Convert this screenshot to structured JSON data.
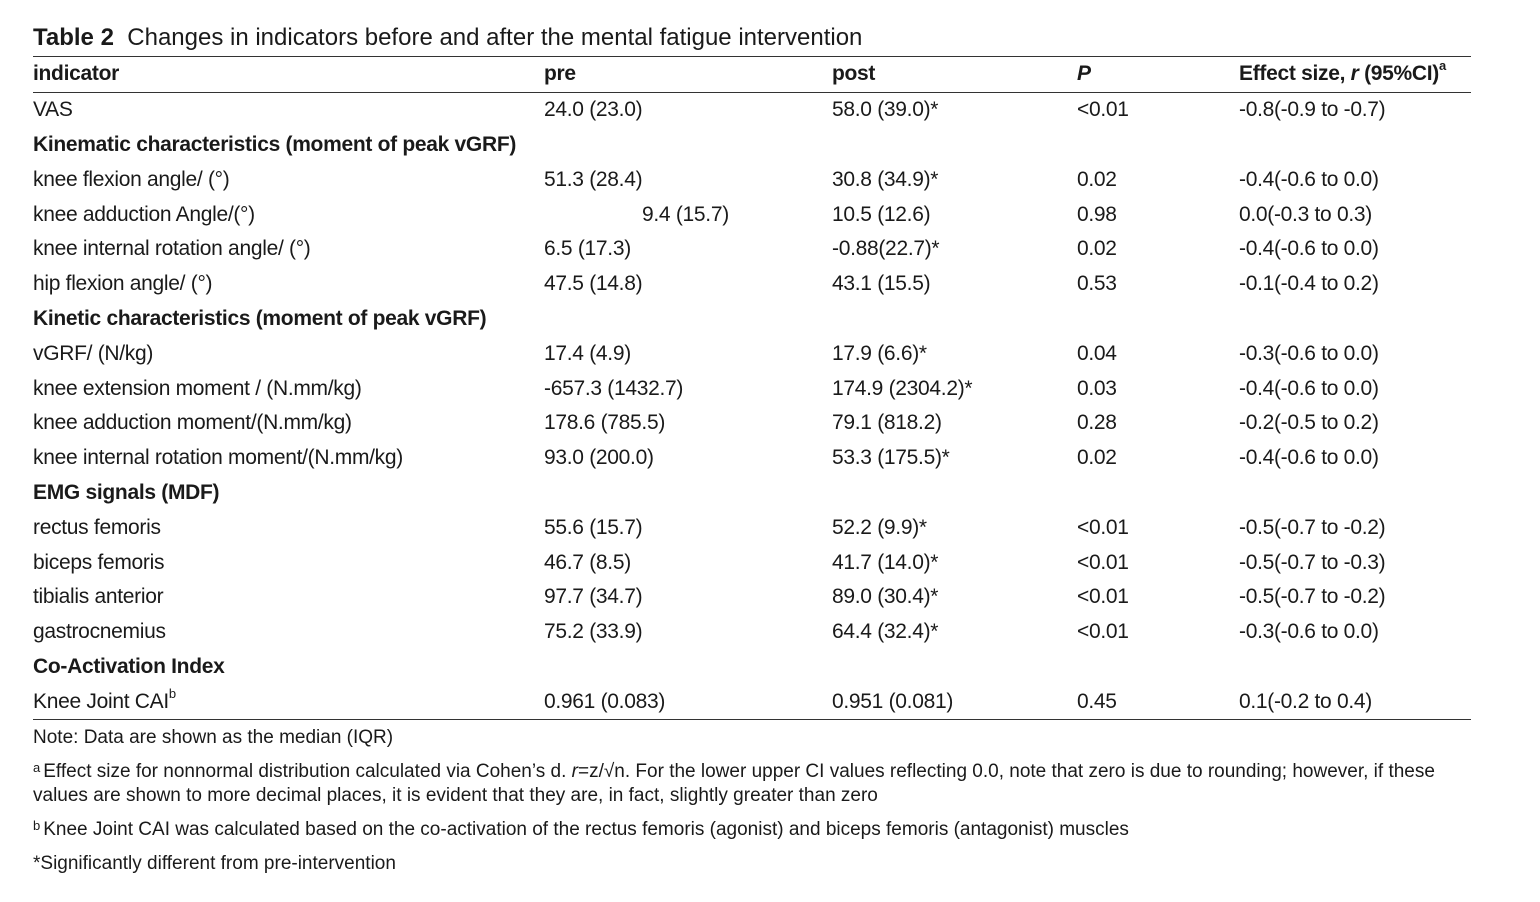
{
  "caption": {
    "label": "Table 2",
    "text": "Changes in indicators before and after the mental fatigue intervention"
  },
  "headers": {
    "indicator": "indicator",
    "pre": "pre",
    "post": "post",
    "p": "P",
    "effect_prefix": "Effect size, ",
    "effect_r": "r",
    "effect_suffix": " (95%CI)",
    "effect_sup": "a"
  },
  "rows": {
    "vas": {
      "indicator": "VAS",
      "pre": "24.0 (23.0)",
      "post": "58.0 (39.0)*",
      "p": "<0.01",
      "effect": "-0.8(-0.9 to -0.7)"
    },
    "sec_kinematic": "Kinematic characteristics (moment of peak vGRF)",
    "knee_flexion": {
      "indicator": "knee flexion angle/ (°)",
      "pre": "51.3 (28.4)",
      "post": "30.8 (34.9)*",
      "p": "0.02",
      "effect": "-0.4(-0.6 to 0.0)"
    },
    "knee_adduction_angle": {
      "indicator": "knee adduction Angle/(°)",
      "pre": "9.4 (15.7)",
      "post": "10.5 (12.6)",
      "p": "0.98",
      "effect": "0.0(-0.3 to 0.3)"
    },
    "knee_internal_rotation_angle": {
      "indicator": "knee internal rotation angle/ (°)",
      "pre": "6.5 (17.3)",
      "post": "-0.88(22.7)*",
      "p": "0.02",
      "effect": "-0.4(-0.6 to 0.0)"
    },
    "hip_flexion": {
      "indicator": "hip flexion angle/ (°)",
      "pre": "47.5 (14.8)",
      "post": "43.1 (15.5)",
      "p": "0.53",
      "effect": "-0.1(-0.4 to 0.2)"
    },
    "sec_kinetic": "Kinetic characteristics (moment of peak vGRF)",
    "vgrf": {
      "indicator": "vGRF/ (N/kg)",
      "pre": "17.4 (4.9)",
      "post": "17.9 (6.6)*",
      "p": "0.04",
      "effect": "-0.3(-0.6 to 0.0)"
    },
    "knee_extension_moment": {
      "indicator": "knee extension moment / (N.mm/kg)",
      "pre": "-657.3 (1432.7)",
      "post": "174.9 (2304.2)*",
      "p": "0.03",
      "effect": "-0.4(-0.6 to 0.0)"
    },
    "knee_adduction_moment": {
      "indicator": "knee adduction moment/(N.mm/kg)",
      "pre": "178.6 (785.5)",
      "post": "79.1 (818.2)",
      "p": "0.28",
      "effect": "-0.2(-0.5 to 0.2)"
    },
    "knee_internal_rotation_moment": {
      "indicator": "knee internal rotation moment/(N.mm/kg)",
      "pre": "93.0 (200.0)",
      "post": "53.3 (175.5)*",
      "p": "0.02",
      "effect": "-0.4(-0.6 to 0.0)"
    },
    "sec_emg": "EMG signals (MDF)",
    "rectus_femoris": {
      "indicator": "rectus femoris",
      "pre": "55.6 (15.7)",
      "post": "52.2 (9.9)*",
      "p": "<0.01",
      "effect": "-0.5(-0.7 to -0.2)"
    },
    "biceps_femoris": {
      "indicator": "biceps femoris",
      "pre": "46.7 (8.5)",
      "post": "41.7 (14.0)*",
      "p": "<0.01",
      "effect": "-0.5(-0.7 to -0.3)"
    },
    "tibialis_anterior": {
      "indicator": "tibialis anterior",
      "pre": "97.7 (34.7)",
      "post": "89.0 (30.4)*",
      "p": "<0.01",
      "effect": "-0.5(-0.7 to -0.2)"
    },
    "gastrocnemius": {
      "indicator": "gastrocnemius",
      "pre": "75.2 (33.9)",
      "post": "64.4 (32.4)*",
      "p": "<0.01",
      "effect": "-0.3(-0.6 to 0.0)"
    },
    "sec_coactivation": "Co-Activation Index",
    "knee_joint_cai": {
      "indicator": "Knee Joint CAI",
      "indicator_sup": "b",
      "pre": "0.961 (0.083)",
      "post": "0.951 (0.081)",
      "p": "0.45",
      "effect": "0.1(-0.2 to 0.4)"
    }
  },
  "notes": {
    "data_note": "Note: Data are shown as the median (IQR)",
    "a_sup": "a",
    "a_text_1": "Effect size for nonnormal distribution calculated via Cohen’s d. ",
    "a_r": "r",
    "a_text_2": "=z/√n. For the lower upper CI values reflecting 0.0, note that zero is due to rounding; however, if these values are shown to more decimal places, it is evident that they are, in fact, slightly greater than zero",
    "b_sup": "b",
    "b_text": "Knee Joint CAI was calculated based on the co-activation of the rectus femoris (agonist) and biceps femoris (antagonist) muscles",
    "sig": "*Significantly different from pre-intervention"
  }
}
